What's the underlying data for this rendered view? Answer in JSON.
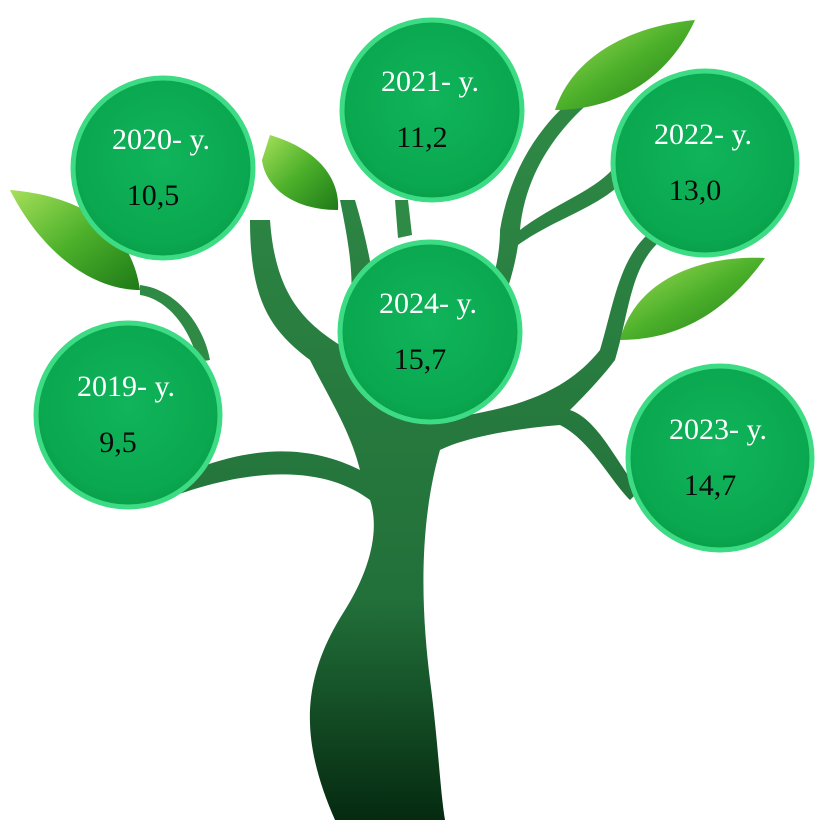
{
  "nodes": [
    {
      "label": "2020- y.",
      "value": "10,5"
    },
    {
      "label": "2021- y.",
      "value": "11,2"
    },
    {
      "label": "2022- y.",
      "value": "13,0"
    },
    {
      "label": "2024- y.",
      "value": "15,7"
    },
    {
      "label": "2019- y.",
      "value": "9,5"
    },
    {
      "label": "2023- y.",
      "value": "14,7"
    }
  ]
}
